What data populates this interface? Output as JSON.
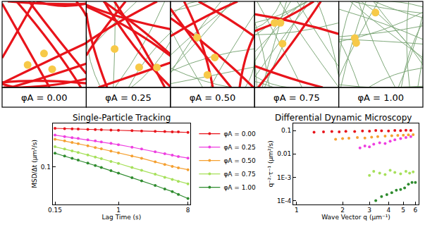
{
  "diagram": {
    "panels": [
      "φA = 0.00",
      "φA = 0.25",
      "φA = 0.50",
      "φA = 0.75",
      "φA = 1.00"
    ]
  },
  "chart_data": [
    {
      "type": "line",
      "title": "Single-Particle Tracking",
      "x_label": "Lag Time (s)",
      "y_label": "MSD/Δt (μm²/s)",
      "x": [
        0.15,
        0.2,
        0.25,
        0.3,
        0.4,
        0.5,
        0.6,
        0.8,
        1,
        1.5,
        2,
        3,
        4,
        5,
        6,
        8
      ],
      "series": [
        {
          "name": "φA = 0.00",
          "color": "#e8141b",
          "values": [
            0.38,
            0.375,
            0.372,
            0.37,
            0.367,
            0.365,
            0.362,
            0.358,
            0.355,
            0.35,
            0.347,
            0.342,
            0.34,
            0.337,
            0.335,
            0.33
          ]
        },
        {
          "name": "φA = 0.25",
          "color": "#ee3fe0",
          "values": [
            0.3,
            0.285,
            0.275,
            0.268,
            0.255,
            0.245,
            0.237,
            0.225,
            0.215,
            0.197,
            0.185,
            0.168,
            0.157,
            0.149,
            0.142,
            0.135
          ]
        },
        {
          "name": "φA = 0.50",
          "color": "#f5a030",
          "values": [
            0.26,
            0.245,
            0.232,
            0.222,
            0.207,
            0.195,
            0.186,
            0.172,
            0.162,
            0.145,
            0.134,
            0.118,
            0.108,
            0.101,
            0.096,
            0.09
          ]
        },
        {
          "name": "φA = 0.75",
          "color": "#a6e05a",
          "values": [
            0.2,
            0.185,
            0.173,
            0.164,
            0.15,
            0.14,
            0.132,
            0.12,
            0.112,
            0.097,
            0.088,
            0.077,
            0.069,
            0.064,
            0.06,
            0.055
          ]
        },
        {
          "name": "φA = 1.00",
          "color": "#2e8b2e",
          "values": [
            0.16,
            0.145,
            0.134,
            0.126,
            0.113,
            0.104,
            0.097,
            0.087,
            0.08,
            0.068,
            0.061,
            0.052,
            0.046,
            0.042,
            0.038,
            0.033
          ]
        }
      ],
      "marker": "circle",
      "log": true,
      "grid": false,
      "legend": "right",
      "xlim": [
        0.14,
        8.6
      ],
      "xticks": [
        0.15,
        1,
        8
      ],
      "ylim": [
        0.027,
        0.45
      ],
      "yticks": [
        0.1
      ]
    },
    {
      "type": "scatter",
      "title": "Differential Dynamic Microscopy",
      "x_label": "Wave Vector q (μm⁻¹)",
      "y_label": "q⁻²·τ⁻¹ (μm²/s)",
      "series": [
        {
          "name": "φA = 0.00",
          "color": "#e8141b",
          "x": [
            1.3,
            1.5,
            1.7,
            1.9,
            2.1,
            2.4,
            2.7,
            3,
            3.3,
            3.6,
            4,
            4.4,
            4.8,
            5.2,
            5.6
          ],
          "values": [
            0.085,
            0.088,
            0.09,
            0.087,
            0.092,
            0.09,
            0.095,
            0.093,
            0.1,
            0.097,
            0.095,
            0.1,
            0.098,
            0.102,
            0.1
          ]
        },
        {
          "name": "φA = 0.25",
          "color": "#ee3fe0",
          "x": [
            2.6,
            2.8,
            3,
            3.2,
            3.5,
            3.8,
            4.1,
            4.4,
            4.8,
            5.2,
            5.6
          ],
          "values": [
            0.018,
            0.022,
            0.02,
            0.026,
            0.03,
            0.028,
            0.035,
            0.04,
            0.045,
            0.05,
            0.055
          ]
        },
        {
          "name": "φA = 0.50",
          "color": "#f5a030",
          "x": [
            1.8,
            2,
            2.2,
            2.5,
            2.8,
            3.1,
            3.4,
            3.8,
            4.2,
            4.6,
            5,
            5.4,
            5.8
          ],
          "values": [
            0.042,
            0.045,
            0.047,
            0.05,
            0.048,
            0.052,
            0.055,
            0.058,
            0.06,
            0.062,
            0.063,
            0.065,
            0.066
          ]
        },
        {
          "name": "φA = 0.75",
          "color": "#a6e05a",
          "x": [
            3,
            3.2,
            3.5,
            3.8,
            4.1,
            4.4,
            4.8,
            5.2,
            5.5,
            5.8
          ],
          "values": [
            0.0012,
            0.0018,
            0.0015,
            0.0013,
            0.002,
            0.0016,
            0.0014,
            0.0018,
            0.0015,
            0.0017
          ]
        },
        {
          "name": "φA = 1.00",
          "color": "#2e8b2e",
          "x": [
            3.3,
            3.6,
            3.9,
            4.2,
            4.5,
            4.8,
            5.1,
            5.4,
            5.7,
            6
          ],
          "values": [
            0.0001,
            0.00015,
            0.00018,
            0.00022,
            0.00028,
            0.0003,
            0.00035,
            0.0005,
            0.0006,
            0.0006
          ]
        }
      ],
      "marker": "circle",
      "log": true,
      "grid": false,
      "xlim": [
        0.95,
        6.3
      ],
      "xticks": [
        1,
        2,
        3,
        4,
        5,
        6
      ],
      "ylim": [
        7e-05,
        0.2
      ],
      "yticks": [
        0.1,
        0.01,
        {
          "value": 0.001,
          "label": "1E-3"
        },
        {
          "value": 0.0001,
          "label": "1E-4"
        }
      ]
    }
  ]
}
